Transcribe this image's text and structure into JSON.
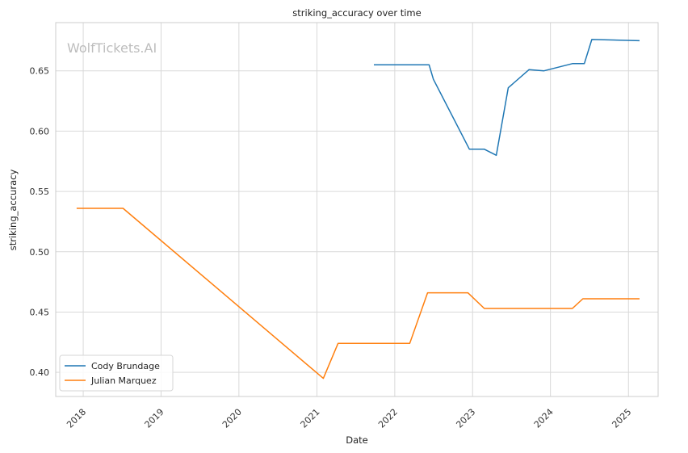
{
  "chart_data": {
    "type": "line",
    "title": "striking_accuracy over time",
    "xlabel": "Date",
    "ylabel": "striking_accuracy",
    "watermark": "WolfTickets.AI",
    "xlim": [
      "2017-08-25",
      "2025-05-20"
    ],
    "ylim": [
      0.38,
      0.69
    ],
    "x_ticks": [
      "2018",
      "2019",
      "2020",
      "2021",
      "2022",
      "2023",
      "2024",
      "2025"
    ],
    "x_tick_dates": [
      "2018-01-01",
      "2019-01-01",
      "2020-01-01",
      "2021-01-01",
      "2022-01-01",
      "2023-01-01",
      "2024-01-01",
      "2025-01-01"
    ],
    "y_ticks": [
      "0.40",
      "0.45",
      "0.50",
      "0.55",
      "0.60",
      "0.65"
    ],
    "y_tick_values": [
      0.4,
      0.45,
      0.5,
      0.55,
      0.6,
      0.65
    ],
    "grid": true,
    "legend_position": "lower-left",
    "series": [
      {
        "name": "Cody Brundage",
        "color": "#1f77b4",
        "points": [
          [
            "2021-09-25",
            0.655
          ],
          [
            "2022-06-11",
            0.655
          ],
          [
            "2022-07-01",
            0.643
          ],
          [
            "2022-12-17",
            0.585
          ],
          [
            "2023-02-25",
            0.585
          ],
          [
            "2023-04-22",
            0.58
          ],
          [
            "2023-06-17",
            0.636
          ],
          [
            "2023-09-23",
            0.651
          ],
          [
            "2023-12-02",
            0.65
          ],
          [
            "2024-04-13",
            0.656
          ],
          [
            "2024-06-08",
            0.656
          ],
          [
            "2024-07-13",
            0.676
          ],
          [
            "2025-02-22",
            0.675
          ]
        ]
      },
      {
        "name": "Julian Marquez",
        "color": "#ff7f0e",
        "points": [
          [
            "2017-12-01",
            0.536
          ],
          [
            "2018-07-07",
            0.536
          ],
          [
            "2021-01-31",
            0.395
          ],
          [
            "2021-04-10",
            0.424
          ],
          [
            "2022-03-12",
            0.424
          ],
          [
            "2022-06-04",
            0.466
          ],
          [
            "2022-12-10",
            0.466
          ],
          [
            "2023-02-25",
            0.453
          ],
          [
            "2024-04-13",
            0.453
          ],
          [
            "2024-06-01",
            0.461
          ],
          [
            "2025-02-22",
            0.461
          ]
        ]
      }
    ]
  }
}
